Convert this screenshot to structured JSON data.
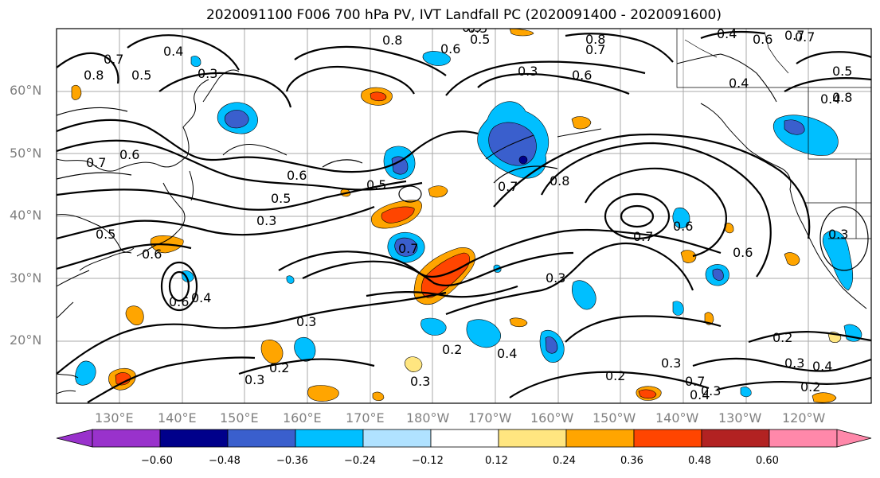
{
  "title": "2020091100 F006 700 hPa PV, IVT Landfall PC (2020091400 - 2020091600)",
  "lat_labels": [
    "60°N",
    "50°N",
    "40°N",
    "30°N",
    "20°N"
  ],
  "lon_labels": [
    "130°E",
    "140°E",
    "150°E",
    "160°E",
    "170°E",
    "180°W",
    "170°W",
    "160°W",
    "150°W",
    "140°W",
    "130°W",
    "120°W"
  ],
  "colorbar": {
    "ticks": [
      "−0.60",
      "−0.48",
      "−0.36",
      "−0.24",
      "−0.12",
      "0.12",
      "0.24",
      "0.36",
      "0.48",
      "0.60"
    ],
    "colors": [
      "#9932cc",
      "#00008b",
      "#3a5fcd",
      "#00bfff",
      "#b0e2ff",
      "#ffffff",
      "#ffe680",
      "#ffa500",
      "#ff4500",
      "#b22222",
      "#ff88aa"
    ]
  },
  "contour_labels": [
    "0.8",
    "0.5",
    "0.8",
    "0.7",
    "0.5",
    "0.6",
    "0.5",
    "0.7",
    "0.7",
    "0.4",
    "0.8",
    "0.6",
    "0.5",
    "0.3",
    "0.4",
    "0.6",
    "0.7",
    "0.6",
    "0.5",
    "0.6",
    "0.3",
    "0.7",
    "0.8",
    "0.7",
    "0.6",
    "0.3",
    "0.7",
    "0.5",
    "0.6",
    "0.6",
    "0.3",
    "0.2",
    "0.4",
    "0.3",
    "0.3",
    "0.2",
    "0.3",
    "0.2",
    "0.4",
    "0.3",
    "0.2",
    "0.7",
    "0.4",
    "0.3",
    "0.3",
    "0.2",
    "0.4",
    "0.6",
    "0.4",
    "0.5",
    "0.8",
    "0.5",
    "0.4",
    "0.3",
    "0.7"
  ]
}
